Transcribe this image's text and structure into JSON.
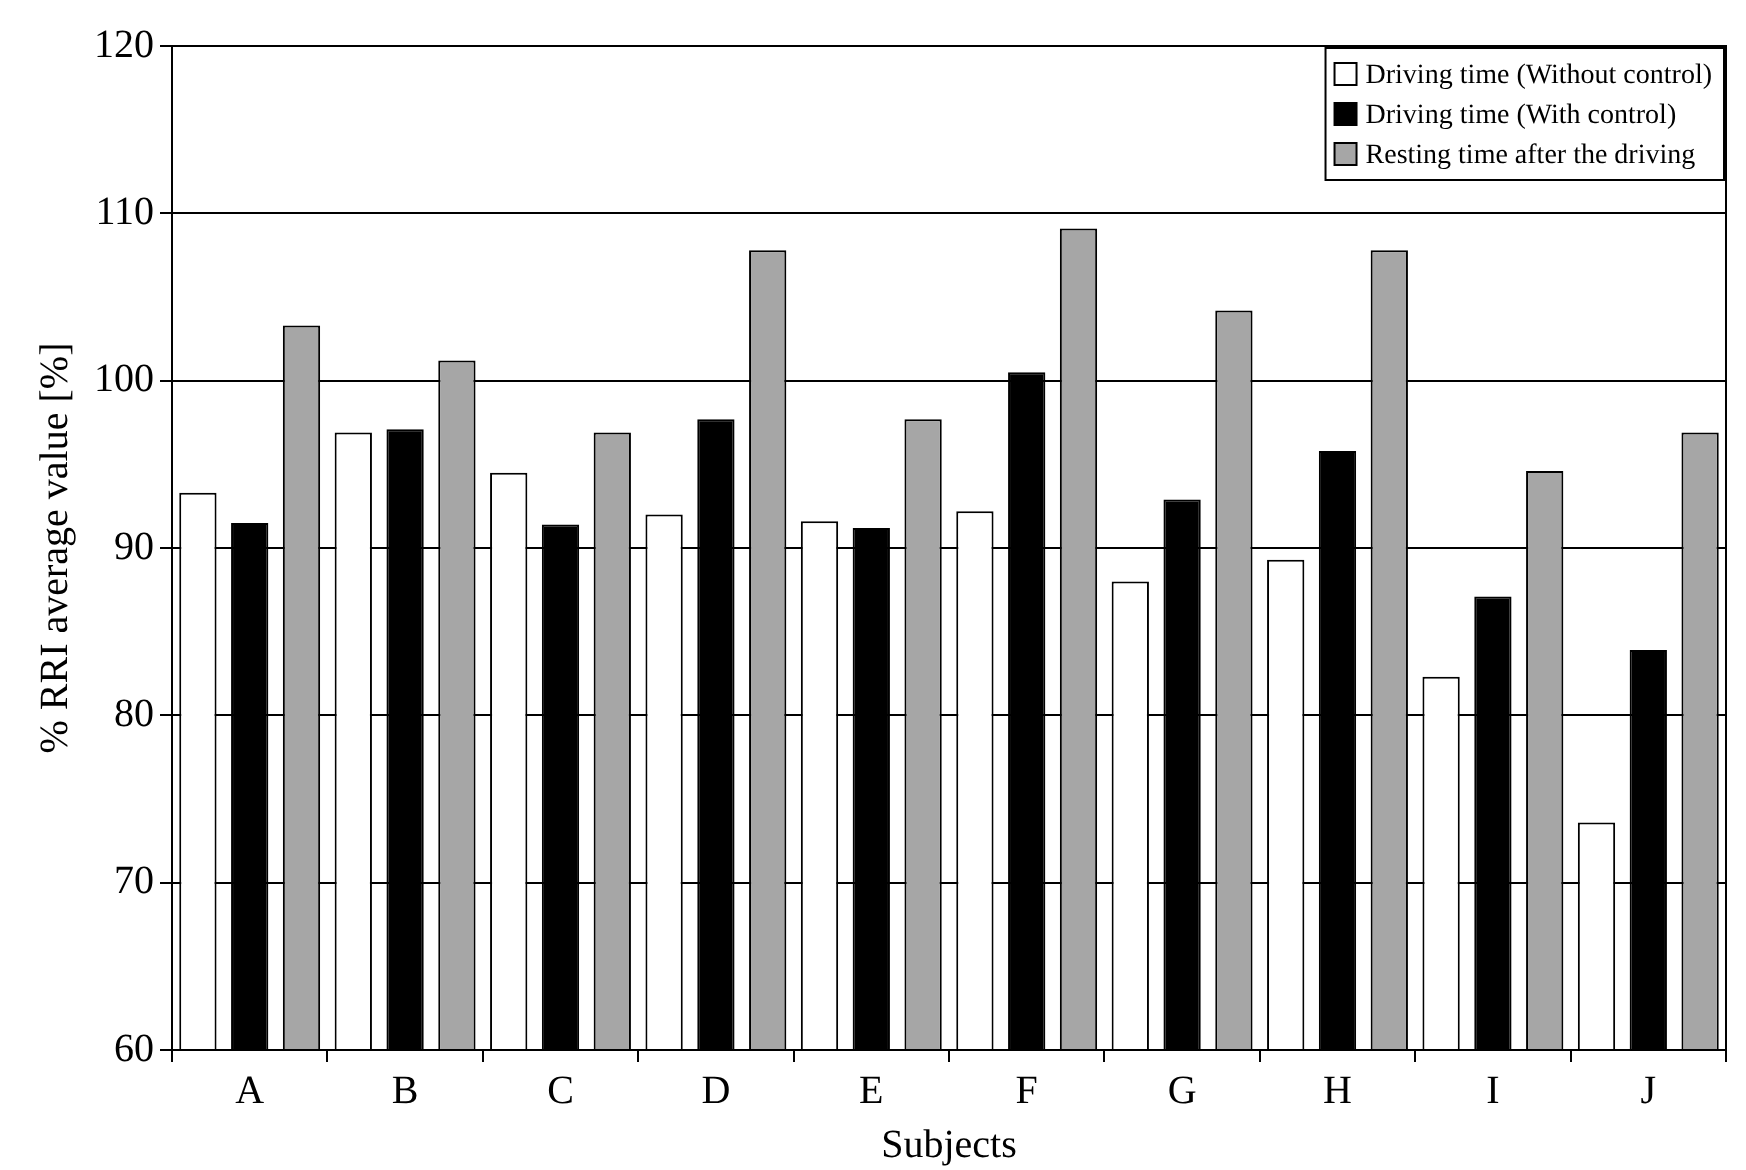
{
  "chart_data": {
    "type": "bar",
    "xlabel": "Subjects",
    "ylabel": "% RRI average value [%]",
    "categories": [
      "A",
      "B",
      "C",
      "D",
      "E",
      "F",
      "G",
      "H",
      "I",
      "J"
    ],
    "series": [
      {
        "name": "Driving time (Without control)",
        "color": "#ffffff",
        "values": [
          93.3,
          96.9,
          94.5,
          92.0,
          91.6,
          92.2,
          88.0,
          89.3,
          82.3,
          73.6
        ]
      },
      {
        "name": "Driving time (With control)",
        "color": "#000000",
        "values": [
          91.5,
          97.1,
          91.4,
          97.7,
          91.2,
          100.5,
          92.9,
          95.8,
          87.1,
          83.9
        ]
      },
      {
        "name": "Resting time after the driving",
        "color": "#a6a6a6",
        "values": [
          103.3,
          101.2,
          96.9,
          107.8,
          97.7,
          109.1,
          104.2,
          107.8,
          94.6,
          96.9
        ]
      }
    ],
    "ylim": [
      60,
      120
    ],
    "yticks": [
      60,
      70,
      80,
      90,
      100,
      110,
      120
    ],
    "grid": "y",
    "legend": "top right"
  }
}
